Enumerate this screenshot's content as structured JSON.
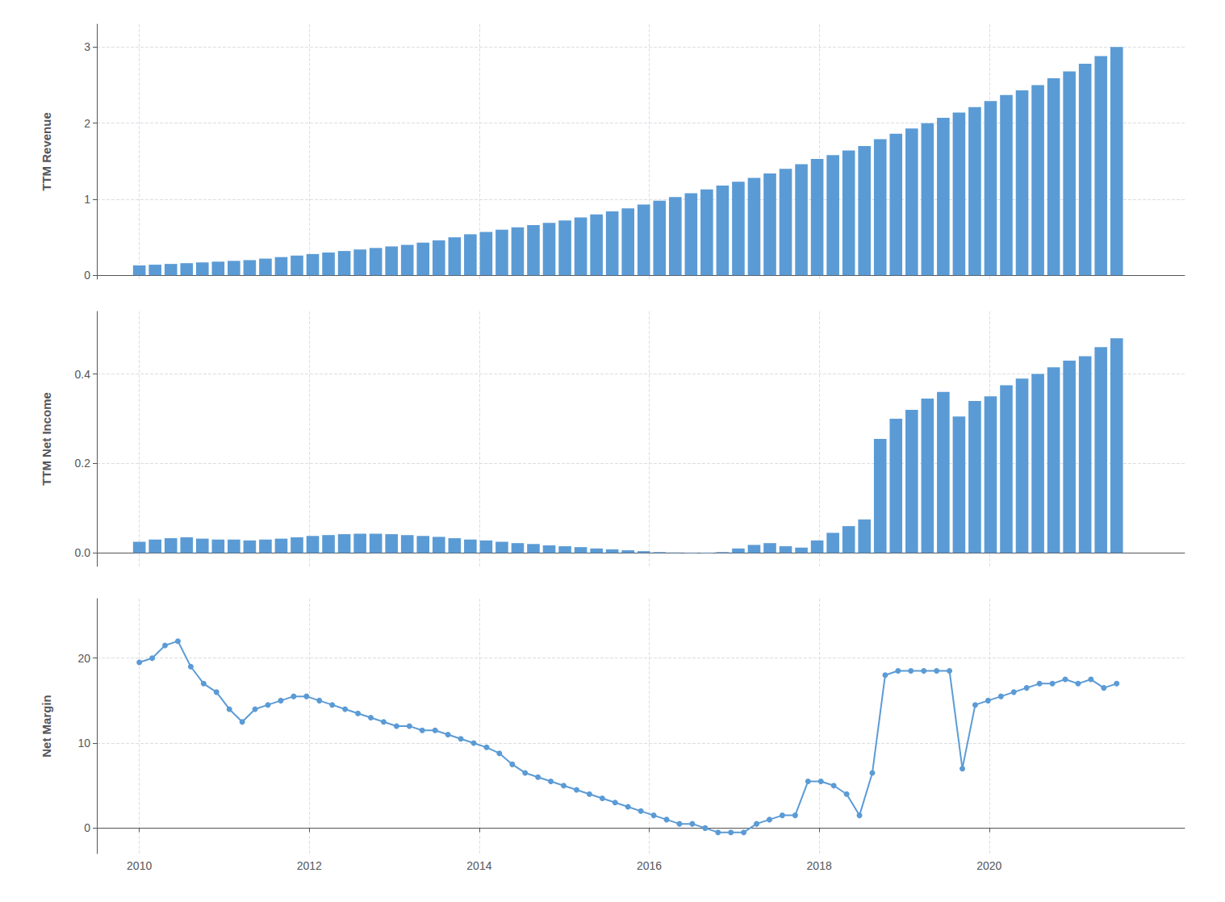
{
  "chart_data": [
    {
      "type": "bar",
      "y_label": "TTM Revenue",
      "color": "#5B9BD5",
      "grid": true,
      "tick_labels": "y",
      "x": [
        2010,
        2010.1855,
        2010.371,
        2010.5565,
        2010.7419,
        2010.9274,
        2011.1129,
        2011.2984,
        2011.4839,
        2011.6694,
        2011.8548,
        2012.0403,
        2012.2258,
        2012.4113,
        2012.5968,
        2012.7823,
        2012.9677,
        2013.1532,
        2013.3387,
        2013.5242,
        2013.7097,
        2013.8952,
        2014.0806,
        2014.2661,
        2014.4516,
        2014.6371,
        2014.8226,
        2015.0081,
        2015.1935,
        2015.379,
        2015.5645,
        2015.75,
        2015.9355,
        2016.121,
        2016.3065,
        2016.4919,
        2016.6774,
        2016.8629,
        2017.0484,
        2017.2339,
        2017.4194,
        2017.6048,
        2017.7903,
        2017.9758,
        2018.1613,
        2018.3468,
        2018.5323,
        2018.7177,
        2018.9032,
        2019.0887,
        2019.2742,
        2019.4597,
        2019.6452,
        2019.8306,
        2020.0161,
        2020.2016,
        2020.3871,
        2020.5726,
        2020.7581,
        2020.9435,
        2021.129,
        2021.3145,
        2021.5
      ],
      "values": [
        0.13,
        0.14,
        0.15,
        0.16,
        0.17,
        0.18,
        0.19,
        0.2,
        0.22,
        0.24,
        0.26,
        0.28,
        0.3,
        0.32,
        0.34,
        0.36,
        0.38,
        0.4,
        0.43,
        0.46,
        0.5,
        0.54,
        0.57,
        0.6,
        0.63,
        0.66,
        0.69,
        0.72,
        0.76,
        0.8,
        0.84,
        0.88,
        0.93,
        0.98,
        1.03,
        1.08,
        1.13,
        1.18,
        1.23,
        1.28,
        1.34,
        1.4,
        1.46,
        1.53,
        1.58,
        1.64,
        1.7,
        1.79,
        1.86,
        1.93,
        2.0,
        2.07,
        2.14,
        2.21,
        2.29,
        2.37,
        2.43,
        2.5,
        2.59,
        2.68,
        2.78,
        2.88,
        3.0
      ],
      "xlim": [
        2009.5,
        2022.3
      ],
      "xticks": [
        2010,
        2012,
        2014,
        2016,
        2018,
        2020
      ],
      "ylim": [
        -0.05,
        3.3
      ],
      "yticks": [
        0,
        1,
        2,
        3
      ]
    },
    {
      "type": "bar",
      "y_label": "TTM Net Income",
      "color": "#5B9BD5",
      "grid": true,
      "tick_labels": "y",
      "x": [
        2010,
        2010.1855,
        2010.371,
        2010.5565,
        2010.7419,
        2010.9274,
        2011.1129,
        2011.2984,
        2011.4839,
        2011.6694,
        2011.8548,
        2012.0403,
        2012.2258,
        2012.4113,
        2012.5968,
        2012.7823,
        2012.9677,
        2013.1532,
        2013.3387,
        2013.5242,
        2013.7097,
        2013.8952,
        2014.0806,
        2014.2661,
        2014.4516,
        2014.6371,
        2014.8226,
        2015.0081,
        2015.1935,
        2015.379,
        2015.5645,
        2015.75,
        2015.9355,
        2016.121,
        2016.3065,
        2016.4919,
        2016.6774,
        2016.8629,
        2017.0484,
        2017.2339,
        2017.4194,
        2017.6048,
        2017.7903,
        2017.9758,
        2018.1613,
        2018.3468,
        2018.5323,
        2018.7177,
        2018.9032,
        2019.0887,
        2019.2742,
        2019.4597,
        2019.6452,
        2019.8306,
        2020.0161,
        2020.2016,
        2020.3871,
        2020.5726,
        2020.7581,
        2020.9435,
        2021.129,
        2021.3145,
        2021.5
      ],
      "values": [
        0.025,
        0.03,
        0.033,
        0.035,
        0.032,
        0.03,
        0.03,
        0.028,
        0.03,
        0.032,
        0.035,
        0.038,
        0.04,
        0.042,
        0.043,
        0.043,
        0.042,
        0.04,
        0.038,
        0.036,
        0.033,
        0.03,
        0.028,
        0.025,
        0.022,
        0.02,
        0.017,
        0.015,
        0.013,
        0.01,
        0.008,
        0.006,
        0.004,
        0.002,
        0.001,
        -0.001,
        -0.001,
        0.002,
        0.01,
        0.018,
        0.022,
        0.015,
        0.012,
        0.028,
        0.045,
        0.06,
        0.075,
        0.255,
        0.3,
        0.32,
        0.345,
        0.36,
        0.305,
        0.34,
        0.35,
        0.375,
        0.39,
        0.4,
        0.415,
        0.43,
        0.44,
        0.46,
        0.48
      ],
      "xlim": [
        2009.5,
        2022.3
      ],
      "xticks": [
        2010,
        2012,
        2014,
        2016,
        2018,
        2020
      ],
      "ylim": [
        -0.03,
        0.54
      ],
      "yticks": [
        {
          "value": 0,
          "label": "0.0"
        },
        {
          "value": 0.2,
          "label": "0.2"
        },
        {
          "value": 0.4,
          "label": "0.4"
        }
      ]
    },
    {
      "type": "line",
      "y_label": "Net Margin",
      "color": "#5B9BD5",
      "marker": "circle",
      "grid": true,
      "x": [
        2010,
        2010.1513,
        2010.3026,
        2010.4539,
        2010.6053,
        2010.7566,
        2010.9079,
        2011.0592,
        2011.2105,
        2011.3618,
        2011.5132,
        2011.6645,
        2011.8158,
        2011.9671,
        2012.1184,
        2012.2697,
        2012.4211,
        2012.5724,
        2012.7237,
        2012.875,
        2013.0263,
        2013.1776,
        2013.3289,
        2013.4803,
        2013.6316,
        2013.7829,
        2013.9342,
        2014.0855,
        2014.2368,
        2014.3882,
        2014.5395,
        2014.6908,
        2014.8421,
        2014.9934,
        2015.1447,
        2015.2961,
        2015.4474,
        2015.5987,
        2015.75,
        2015.9013,
        2016.0526,
        2016.2039,
        2016.3553,
        2016.5066,
        2016.6579,
        2016.8092,
        2016.9605,
        2017.1118,
        2017.2632,
        2017.4145,
        2017.5658,
        2017.7171,
        2017.8684,
        2018.0197,
        2018.1711,
        2018.3224,
        2018.4737,
        2018.625,
        2018.7763,
        2018.9276,
        2019.0789,
        2019.2303,
        2019.3816,
        2019.5329,
        2019.6842,
        2019.8355,
        2019.9868,
        2020.1382,
        2020.2895,
        2020.4408,
        2020.5921,
        2020.7434,
        2020.8947,
        2021.0461,
        2021.1974,
        2021.3487,
        2021.5
      ],
      "values": [
        19.5,
        20.0,
        21.5,
        22.0,
        19.0,
        17.0,
        16.0,
        14.0,
        12.5,
        14.0,
        14.5,
        15.0,
        15.5,
        15.5,
        15.0,
        14.5,
        14.0,
        13.5,
        13.0,
        12.5,
        12.0,
        12.0,
        11.5,
        11.5,
        11.0,
        10.5,
        10.0,
        9.5,
        8.8,
        7.5,
        6.5,
        6.0,
        5.5,
        5.0,
        4.5,
        4.0,
        3.5,
        3.0,
        2.5,
        2.0,
        1.5,
        1.0,
        0.5,
        0.5,
        0.0,
        -0.5,
        -0.5,
        -0.5,
        0.5,
        1.0,
        1.5,
        1.5,
        5.5,
        5.5,
        5.0,
        4.0,
        1.5,
        6.5,
        18.0,
        18.5,
        18.5,
        18.5,
        18.5,
        18.5,
        7.0,
        14.5,
        15.0,
        15.5,
        16.0,
        16.5,
        17.0,
        17.0,
        17.5,
        17.0,
        17.5,
        16.5,
        17.0
      ],
      "xlim": [
        2009.5,
        2022.3
      ],
      "xticks": [
        2010,
        2012,
        2014,
        2016,
        2018,
        2020
      ],
      "ylim": [
        -3,
        27
      ],
      "yticks": [
        0,
        10,
        20
      ]
    }
  ]
}
